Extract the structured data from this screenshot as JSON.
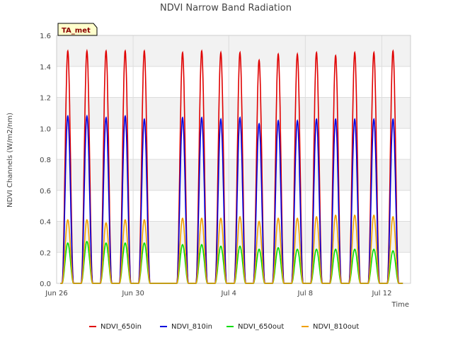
{
  "chart_data": {
    "type": "line",
    "title": "NDVI Narrow Band Radiation",
    "xlabel": "Time",
    "ylabel": "NDVI Channels (W/m2/nm)",
    "ylim": [
      0,
      1.6
    ],
    "xlim": [
      "Jun 26",
      "Jul 14 12:00"
    ],
    "x_ticks": [
      "Jun 26",
      "Jun 30",
      "Jul 4",
      "Jul 8",
      "Jul 12"
    ],
    "y_ticks": [
      "0.0",
      "0.2",
      "0.4",
      "0.6",
      "0.8",
      "1.0",
      "1.2",
      "1.4",
      "1.6"
    ],
    "grid": true,
    "legend_position": "bottom",
    "annotation": "TA_met",
    "peak_times": [
      "Jun 26 14:00",
      "Jun 27 14:00",
      "Jun 28 14:00",
      "Jun 29 14:00",
      "Jun 30 14:00",
      "Jul 1 14:00",
      "Jul 2 14:00",
      "Jul 3 14:00",
      "Jul 4 14:00",
      "Jul 5 14:00",
      "Jul 6 14:00",
      "Jul 7 14:00",
      "Jul 8 14:00",
      "Jul 9 14:00",
      "Jul 10 14:00",
      "Jul 11 14:00",
      "Jul 12 14:00",
      "Jul 13 14:00"
    ],
    "series": [
      {
        "name": "NDVI_650in",
        "color": "#e00000",
        "daily_peaks": [
          1.5,
          1.5,
          1.5,
          1.5,
          1.5,
          1.49,
          1.5,
          1.49,
          1.49,
          1.44,
          1.48,
          1.48,
          1.49,
          1.47,
          1.49,
          1.49,
          1.5,
          1.5
        ]
      },
      {
        "name": "NDVI_810in",
        "color": "#0000dd",
        "daily_peaks": [
          1.08,
          1.08,
          1.07,
          1.08,
          1.06,
          1.07,
          1.07,
          1.06,
          1.07,
          1.03,
          1.05,
          1.05,
          1.06,
          1.06,
          1.06,
          1.06,
          1.06,
          1.06
        ]
      },
      {
        "name": "NDVI_650out",
        "color": "#00dd00",
        "daily_peaks": [
          0.26,
          0.27,
          0.26,
          0.26,
          0.26,
          0.25,
          0.25,
          0.24,
          0.24,
          0.22,
          0.23,
          0.22,
          0.22,
          0.22,
          0.22,
          0.22,
          0.21,
          0.21
        ]
      },
      {
        "name": "NDVI_810out",
        "color": "#f0a000",
        "daily_peaks": [
          0.41,
          0.41,
          0.39,
          0.41,
          0.41,
          0.42,
          0.42,
          0.42,
          0.43,
          0.4,
          0.42,
          0.42,
          0.43,
          0.44,
          0.44,
          0.44,
          0.43,
          0.43
        ]
      }
    ]
  }
}
